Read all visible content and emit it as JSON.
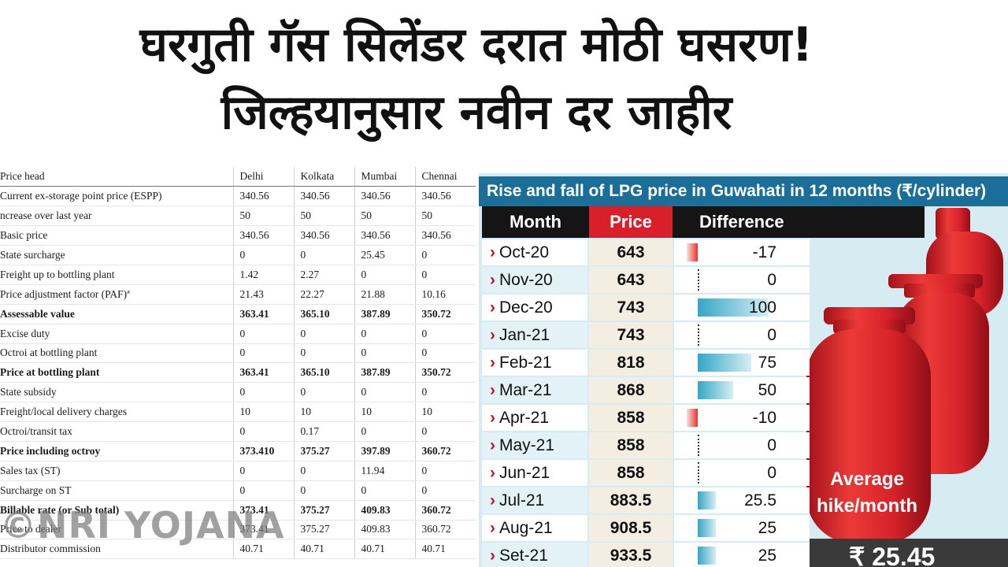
{
  "headline": {
    "line1": "घरगुती गॅस सिलेंडर दरात मोठी घसरण!",
    "line2": "जिल्हयानुसार नवीन दर जाहीर"
  },
  "cost_table": {
    "headers": [
      "Price head",
      "Delhi",
      "Kolkata",
      "Mumbai",
      "Chennai"
    ],
    "rows": [
      {
        "label": "Current ex-storage point price (ESPP)",
        "values": [
          "340.56",
          "340.56",
          "340.56",
          "340.56"
        ],
        "bold": false
      },
      {
        "label": "ncrease over last year",
        "values": [
          "50",
          "50",
          "50",
          "50"
        ],
        "bold": false
      },
      {
        "label": "Basic price",
        "values": [
          "340.56",
          "340.56",
          "340.56",
          "340.56"
        ],
        "bold": false
      },
      {
        "label": "State surcharge",
        "values": [
          "0",
          "0",
          "25.45",
          "0"
        ],
        "bold": false
      },
      {
        "label": "Freight up to bottling plant",
        "values": [
          "1.42",
          "2.27",
          "0",
          "0"
        ],
        "bold": false
      },
      {
        "label": "Price adjustment factor (PAF)ª",
        "values": [
          "21.43",
          "22.27",
          "21.88",
          "10.16"
        ],
        "bold": false
      },
      {
        "label": "Assessable value",
        "values": [
          "363.41",
          "365.10",
          "387.89",
          "350.72"
        ],
        "bold": true
      },
      {
        "label": "Excise duty",
        "values": [
          "0",
          "0",
          "0",
          "0"
        ],
        "bold": false
      },
      {
        "label": "Octroi at bottling plant",
        "values": [
          "0",
          "0",
          "0",
          "0"
        ],
        "bold": false
      },
      {
        "label": "Price at bottling plant",
        "values": [
          "363.41",
          "365.10",
          "387.89",
          "350.72"
        ],
        "bold": true
      },
      {
        "label": "State subsidy",
        "values": [
          "0",
          "0",
          "0",
          "0"
        ],
        "bold": false
      },
      {
        "label": "Freight/local delivery charges",
        "values": [
          "10",
          "10",
          "10",
          "10"
        ],
        "bold": false
      },
      {
        "label": "Octroi/transit tax",
        "values": [
          "0",
          "0.17",
          "0",
          "0"
        ],
        "bold": false
      },
      {
        "label": "Price including octroy",
        "values": [
          "373.410",
          "375.27",
          "397.89",
          "360.72"
        ],
        "bold": true
      },
      {
        "label": "Sales tax (ST)",
        "values": [
          "0",
          "0",
          "11.94",
          "0"
        ],
        "bold": false
      },
      {
        "label": "Surcharge on ST",
        "values": [
          "0",
          "0",
          "0",
          "0"
        ],
        "bold": false
      },
      {
        "label": "Billable rate (or Sub total)",
        "values": [
          "373.41",
          "375.27",
          "409.83",
          "360.72"
        ],
        "bold": true
      },
      {
        "label": "Price to dealer",
        "values": [
          "373.41",
          "375.27",
          "409.83",
          "360.72"
        ],
        "bold": false
      },
      {
        "label": "Distributor commission",
        "values": [
          "40.71",
          "40.71",
          "40.71",
          "40.71"
        ],
        "bold": false
      }
    ]
  },
  "watermark": "©NRI YOJANA",
  "infographic": {
    "title": "Rise and fall of LPG price in Guwahati in 12 months (₹/cylinder)",
    "col_month": "Month",
    "col_price": "Price",
    "col_diff": "Difference",
    "chevron": "›",
    "rows": [
      {
        "month": "Oct-20",
        "price": "643",
        "diff": "-17",
        "diff_value": -17
      },
      {
        "month": "Nov-20",
        "price": "643",
        "diff": "0",
        "diff_value": 0
      },
      {
        "month": "Dec-20",
        "price": "743",
        "diff": "100",
        "diff_value": 100
      },
      {
        "month": "Jan-21",
        "price": "743",
        "diff": "0",
        "diff_value": 0
      },
      {
        "month": "Feb-21",
        "price": "818",
        "diff": "75",
        "diff_value": 75
      },
      {
        "month": "Mar-21",
        "price": "868",
        "diff": "50",
        "diff_value": 50
      },
      {
        "month": "Apr-21",
        "price": "858",
        "diff": "-10",
        "diff_value": -10
      },
      {
        "month": "May-21",
        "price": "858",
        "diff": "0",
        "diff_value": 0
      },
      {
        "month": "Jun-21",
        "price": "858",
        "diff": "0",
        "diff_value": 0
      },
      {
        "month": "Jul-21",
        "price": "883.5",
        "diff": "25.5",
        "diff_value": 25.5
      },
      {
        "month": "Aug-21",
        "price": "908.5",
        "diff": "25",
        "diff_value": 25
      },
      {
        "month": "Set-21",
        "price": "933.5",
        "diff": "25",
        "diff_value": 25
      }
    ],
    "avg_line1": "Average",
    "avg_line2": "hike/month",
    "avg_value": "₹ 25.45",
    "colors": {
      "title_bg": "#1a6e98",
      "price_header": "#d81f2a",
      "cylinder": "#e0262c",
      "positive_bar": "#35a6c4",
      "negative_bar": "#e5332a"
    }
  }
}
